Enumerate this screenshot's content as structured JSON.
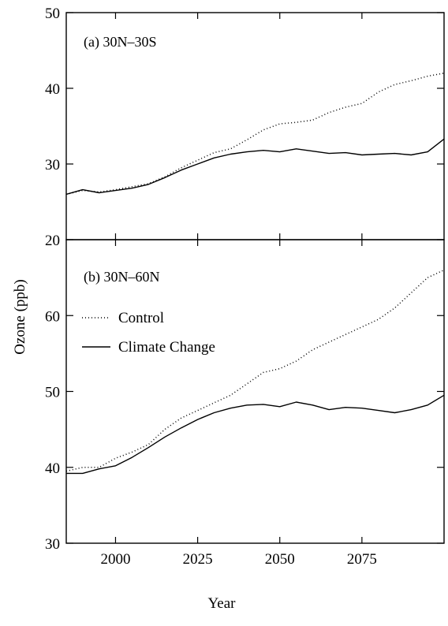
{
  "chart_data": {
    "type": "line",
    "xlabel": "Year",
    "ylabel": "Ozone (ppb)",
    "xlim": [
      1985,
      2100
    ],
    "xticks": [
      2000,
      2025,
      2050,
      2075
    ],
    "legend": {
      "placement": "left",
      "entries": [
        {
          "name": "Control",
          "style": "dotted"
        },
        {
          "name": "Climate Change",
          "style": "solid"
        }
      ]
    },
    "panels": [
      {
        "label": "(a) 30N–30S",
        "ylim": [
          20,
          50
        ],
        "yticks": [
          20,
          30,
          40,
          50
        ],
        "series": [
          {
            "name": "Control",
            "style": "dotted",
            "x": [
              1985,
              1990,
              1995,
              2000,
              2005,
              2010,
              2015,
              2020,
              2025,
              2030,
              2035,
              2040,
              2045,
              2050,
              2055,
              2060,
              2065,
              2070,
              2075,
              2080,
              2085,
              2090,
              2095,
              2100
            ],
            "y": [
              26,
              26.5,
              26.3,
              26.6,
              27,
              27.4,
              28.3,
              29.5,
              30.5,
              31.5,
              32,
              33.2,
              34.5,
              35.3,
              35.5,
              35.8,
              36.8,
              37.5,
              38,
              39.5,
              40.5,
              41,
              41.6,
              42
            ]
          },
          {
            "name": "Climate Change",
            "style": "solid",
            "x": [
              1985,
              1990,
              1995,
              2000,
              2005,
              2010,
              2015,
              2020,
              2025,
              2030,
              2035,
              2040,
              2045,
              2050,
              2055,
              2060,
              2065,
              2070,
              2075,
              2080,
              2085,
              2090,
              2095,
              2100
            ],
            "y": [
              26,
              26.6,
              26.2,
              26.5,
              26.8,
              27.3,
              28.2,
              29.2,
              30,
              30.8,
              31.3,
              31.6,
              31.8,
              31.6,
              32,
              31.7,
              31.4,
              31.5,
              31.2,
              31.3,
              31.4,
              31.2,
              31.6,
              33.3
            ]
          }
        ]
      },
      {
        "label": "(b) 30N–60N",
        "ylim": [
          30,
          70
        ],
        "yticks": [
          30,
          40,
          50,
          60
        ],
        "series": [
          {
            "name": "Control",
            "style": "dotted",
            "x": [
              1985,
              1990,
              1995,
              2000,
              2005,
              2010,
              2015,
              2020,
              2025,
              2030,
              2035,
              2040,
              2045,
              2050,
              2055,
              2060,
              2065,
              2070,
              2075,
              2080,
              2085,
              2090,
              2095,
              2100
            ],
            "y": [
              39.5,
              40,
              40,
              41.2,
              42,
              43,
              45,
              46.5,
              47.5,
              48.5,
              49.5,
              51,
              52.5,
              53,
              54,
              55.5,
              56.5,
              57.5,
              58.5,
              59.5,
              61,
              63,
              65,
              66
            ]
          },
          {
            "name": "Climate Change",
            "style": "solid",
            "x": [
              1985,
              1990,
              1995,
              2000,
              2005,
              2010,
              2015,
              2020,
              2025,
              2030,
              2035,
              2040,
              2045,
              2050,
              2055,
              2060,
              2065,
              2070,
              2075,
              2080,
              2085,
              2090,
              2095,
              2100
            ],
            "y": [
              39.2,
              39.2,
              39.8,
              40.2,
              41.3,
              42.6,
              44,
              45.2,
              46.3,
              47.2,
              47.8,
              48.2,
              48.3,
              48,
              48.6,
              48.2,
              47.6,
              47.9,
              47.8,
              47.5,
              47.2,
              47.6,
              48.2,
              49.5
            ]
          }
        ]
      }
    ]
  }
}
